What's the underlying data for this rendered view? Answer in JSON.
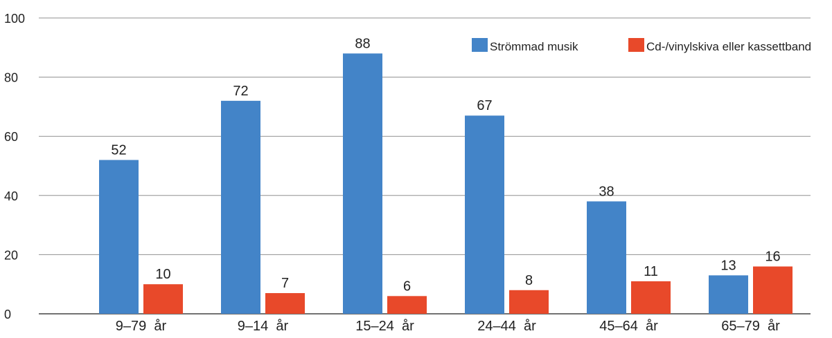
{
  "chart_data": {
    "type": "bar",
    "title": "",
    "xlabel": "",
    "ylabel": "",
    "ylim": [
      0,
      100
    ],
    "yticks": [
      0,
      20,
      40,
      60,
      80,
      100
    ],
    "grid": true,
    "legend_position": "top-right",
    "categories": [
      "9–79  år",
      "9–14  år",
      "15–24  år",
      "24–44  år",
      "45–64  år",
      "65–79  år"
    ],
    "series": [
      {
        "name": "Strömmad musik",
        "color": "#4384C8",
        "values": [
          52,
          72,
          88,
          67,
          38,
          13
        ]
      },
      {
        "name": "Cd-/vinylskiva eller kassettband",
        "color": "#E8492A",
        "values": [
          10,
          7,
          6,
          8,
          11,
          16
        ]
      }
    ]
  }
}
